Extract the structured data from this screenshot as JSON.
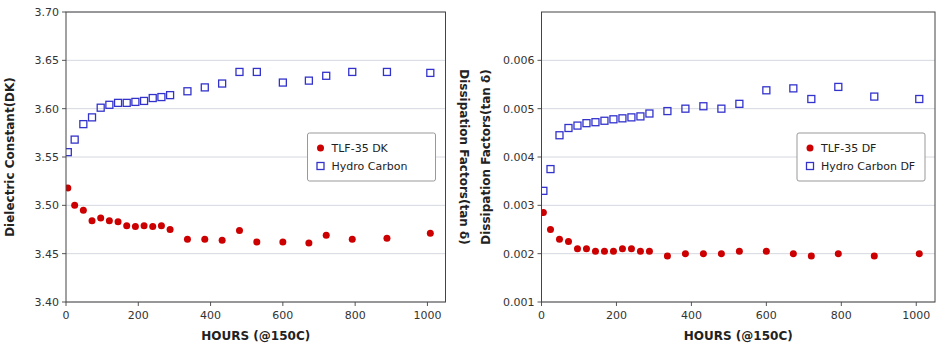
{
  "chart_data": [
    {
      "type": "scatter",
      "xlabel": "HOURS (@150C)",
      "ylabel": "Dielectric Constant(DK)",
      "y2label": "Dissipation Factors(tan δ)",
      "xlim": [
        0,
        1050
      ],
      "ylim": [
        3.4,
        3.7
      ],
      "xticks": [
        0,
        200,
        400,
        600,
        800,
        1000
      ],
      "yticks": [
        {
          "value": 3.4,
          "label": "3.40"
        },
        3.45,
        {
          "value": 3.5,
          "label": "3.50"
        },
        3.55,
        {
          "value": 3.6,
          "label": "3.60"
        },
        3.65,
        {
          "value": 3.7,
          "label": "3.70"
        }
      ],
      "grid": true,
      "legend": "right",
      "x": [
        5,
        24,
        48,
        72,
        96,
        120,
        144,
        168,
        192,
        216,
        240,
        264,
        288,
        336,
        384,
        432,
        480,
        528,
        600,
        672,
        720,
        792,
        888,
        1008
      ],
      "series": [
        {
          "name": "TLF-35 DK",
          "color": "#cc0000",
          "marker": "circle",
          "values": [
            3.518,
            3.5,
            3.495,
            3.484,
            3.487,
            3.484,
            3.483,
            3.479,
            3.478,
            3.479,
            3.478,
            3.479,
            3.475,
            3.465,
            3.465,
            3.464,
            3.474,
            3.462,
            3.462,
            3.461,
            3.469,
            3.465,
            3.466,
            3.471
          ]
        },
        {
          "name": "Hydro Carbon",
          "color": "#3333cc",
          "marker": "square",
          "values": [
            3.555,
            3.568,
            3.584,
            3.591,
            3.601,
            3.604,
            3.606,
            3.606,
            3.607,
            3.608,
            3.611,
            3.612,
            3.614,
            3.618,
            3.622,
            3.626,
            3.638,
            3.638,
            3.627,
            3.629,
            3.634,
            3.638,
            3.638,
            3.637
          ]
        }
      ]
    },
    {
      "type": "scatter",
      "xlabel": "HOURS (@150C)",
      "ylabel": "Dissipation Factors(tan δ)",
      "xlim": [
        0,
        1050
      ],
      "ylim": [
        0.001,
        0.007
      ],
      "xticks": [
        0,
        200,
        400,
        600,
        800,
        1000
      ],
      "yticks": [
        0.001,
        0.002,
        0.003,
        0.004,
        0.005,
        0.006
      ],
      "grid": true,
      "legend": "right",
      "x": [
        5,
        24,
        48,
        72,
        96,
        120,
        144,
        168,
        192,
        216,
        240,
        264,
        288,
        336,
        384,
        432,
        480,
        528,
        600,
        672,
        720,
        792,
        888,
        1008
      ],
      "series": [
        {
          "name": "TLF-35 DF",
          "color": "#cc0000",
          "marker": "circle",
          "values": [
            0.00285,
            0.0025,
            0.0023,
            0.00225,
            0.0021,
            0.0021,
            0.00205,
            0.00205,
            0.00205,
            0.0021,
            0.0021,
            0.00205,
            0.00205,
            0.00195,
            0.002,
            0.002,
            0.002,
            0.00205,
            0.00205,
            0.002,
            0.00195,
            0.002,
            0.00195,
            0.002
          ]
        },
        {
          "name": "Hydro Carbon DF",
          "color": "#3333cc",
          "marker": "square",
          "values": [
            0.0033,
            0.00375,
            0.00445,
            0.0046,
            0.00465,
            0.0047,
            0.00472,
            0.00475,
            0.00478,
            0.0048,
            0.00482,
            0.00484,
            0.0049,
            0.00495,
            0.005,
            0.00505,
            0.005,
            0.0051,
            0.00538,
            0.00542,
            0.0052,
            0.00545,
            0.00525,
            0.0052
          ]
        }
      ]
    }
  ]
}
